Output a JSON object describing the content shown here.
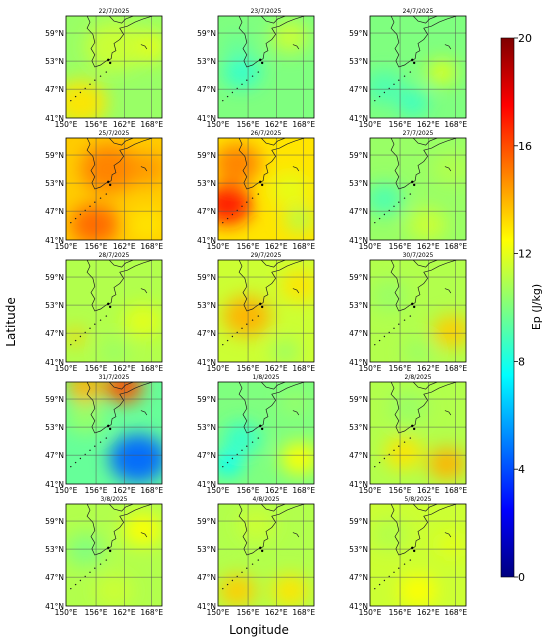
{
  "figure": {
    "xlabel": "Longitude",
    "ylabel": "Latitude"
  },
  "axes": {
    "lat_ticks": [
      "59°N",
      "53°N",
      "47°N",
      "41°N"
    ],
    "lon_ticks": [
      "150°E",
      "156°E",
      "162°E",
      "168°E"
    ]
  },
  "colorbar": {
    "label": "Ep (J/kg)",
    "min": 0,
    "max": 20,
    "ticks": [
      "0",
      "4",
      "8",
      "12",
      "16",
      "20"
    ],
    "colormap": "jet",
    "colors": [
      "#00007f",
      "#0000ff",
      "#007fff",
      "#00ffff",
      "#7fff7f",
      "#ffff00",
      "#ff7f00",
      "#ff0000",
      "#7f0000"
    ]
  },
  "panels": [
    {
      "date": "22/7/2025",
      "base": 10.5,
      "blobs": [
        [
          0.15,
          0.85,
          13,
          0.28
        ],
        [
          0.85,
          0.3,
          12,
          0.2
        ],
        [
          0.5,
          0.3,
          11.5,
          0.3
        ]
      ]
    },
    {
      "date": "23/7/2025",
      "base": 10.0,
      "blobs": [
        [
          0.25,
          0.55,
          8.5,
          0.2
        ],
        [
          0.75,
          0.2,
          11.5,
          0.2
        ],
        [
          0.2,
          0.3,
          9.5,
          0.15
        ]
      ]
    },
    {
      "date": "24/7/2025",
      "base": 10.0,
      "blobs": [
        [
          0.45,
          0.85,
          8.5,
          0.15
        ],
        [
          0.15,
          0.7,
          9,
          0.2
        ],
        [
          0.75,
          0.55,
          12,
          0.15
        ]
      ]
    },
    {
      "date": "25/7/2025",
      "base": 13.5,
      "blobs": [
        [
          0.3,
          0.85,
          15.5,
          0.25
        ],
        [
          0.45,
          0.3,
          15,
          0.3
        ],
        [
          0.85,
          0.3,
          14.5,
          0.2
        ],
        [
          0.85,
          0.85,
          13,
          0.2
        ]
      ]
    },
    {
      "date": "26/7/2025",
      "base": 13.0,
      "blobs": [
        [
          0.1,
          0.65,
          17,
          0.25
        ],
        [
          0.2,
          0.25,
          15,
          0.25
        ],
        [
          0.75,
          0.5,
          12,
          0.2
        ],
        [
          0.85,
          0.8,
          11,
          0.15
        ]
      ]
    },
    {
      "date": "27/7/2025",
      "base": 10.5,
      "blobs": [
        [
          0.15,
          0.6,
          9,
          0.2
        ],
        [
          0.6,
          0.85,
          11.5,
          0.2
        ],
        [
          0.85,
          0.3,
          11,
          0.2
        ]
      ]
    },
    {
      "date": "28/7/2025",
      "base": 11.0,
      "blobs": [
        [
          0.1,
          0.75,
          13.5,
          0.1
        ],
        [
          0.8,
          0.6,
          12,
          0.2
        ],
        [
          0.5,
          0.9,
          10.5,
          0.15
        ]
      ]
    },
    {
      "date": "29/7/2025",
      "base": 11.5,
      "blobs": [
        [
          0.3,
          0.55,
          14,
          0.25
        ],
        [
          0.85,
          0.25,
          13,
          0.2
        ],
        [
          0.7,
          0.9,
          10.5,
          0.15
        ]
      ]
    },
    {
      "date": "30/7/2025",
      "base": 11.0,
      "blobs": [
        [
          0.85,
          0.7,
          13.5,
          0.2
        ],
        [
          0.2,
          0.35,
          10.5,
          0.2
        ],
        [
          0.5,
          0.9,
          10.5,
          0.15
        ]
      ]
    },
    {
      "date": "31/7/2025",
      "base": 9.5,
      "blobs": [
        [
          0.75,
          0.75,
          4.5,
          0.3
        ],
        [
          0.6,
          0.05,
          16,
          0.2
        ],
        [
          0.2,
          0.05,
          14,
          0.2
        ],
        [
          0.2,
          0.35,
          10.5,
          0.2
        ]
      ]
    },
    {
      "date": "1/8/2025",
      "base": 10.0,
      "blobs": [
        [
          0.1,
          0.8,
          7.5,
          0.15
        ],
        [
          0.25,
          0.55,
          8.5,
          0.2
        ],
        [
          0.85,
          0.75,
          12.5,
          0.2
        ],
        [
          0.8,
          0.2,
          10.5,
          0.15
        ]
      ]
    },
    {
      "date": "2/8/2025",
      "base": 11.0,
      "blobs": [
        [
          0.8,
          0.8,
          14,
          0.2
        ],
        [
          0.35,
          0.7,
          13,
          0.2
        ],
        [
          0.4,
          0.25,
          10.5,
          0.2
        ]
      ]
    },
    {
      "date": "3/8/2025",
      "base": 11.0,
      "blobs": [
        [
          0.2,
          0.45,
          10,
          0.2
        ],
        [
          0.8,
          0.25,
          12.5,
          0.2
        ],
        [
          0.5,
          0.85,
          11.5,
          0.2
        ]
      ]
    },
    {
      "date": "4/8/2025",
      "base": 11.0,
      "blobs": [
        [
          0.2,
          0.85,
          13.5,
          0.2
        ],
        [
          0.75,
          0.85,
          13,
          0.2
        ],
        [
          0.4,
          0.2,
          11.5,
          0.2
        ]
      ]
    },
    {
      "date": "5/8/2025",
      "base": 11.5,
      "blobs": [
        [
          0.5,
          0.85,
          12.5,
          0.2
        ],
        [
          0.2,
          0.3,
          11,
          0.2
        ],
        [
          0.85,
          0.4,
          12,
          0.15
        ]
      ]
    }
  ]
}
